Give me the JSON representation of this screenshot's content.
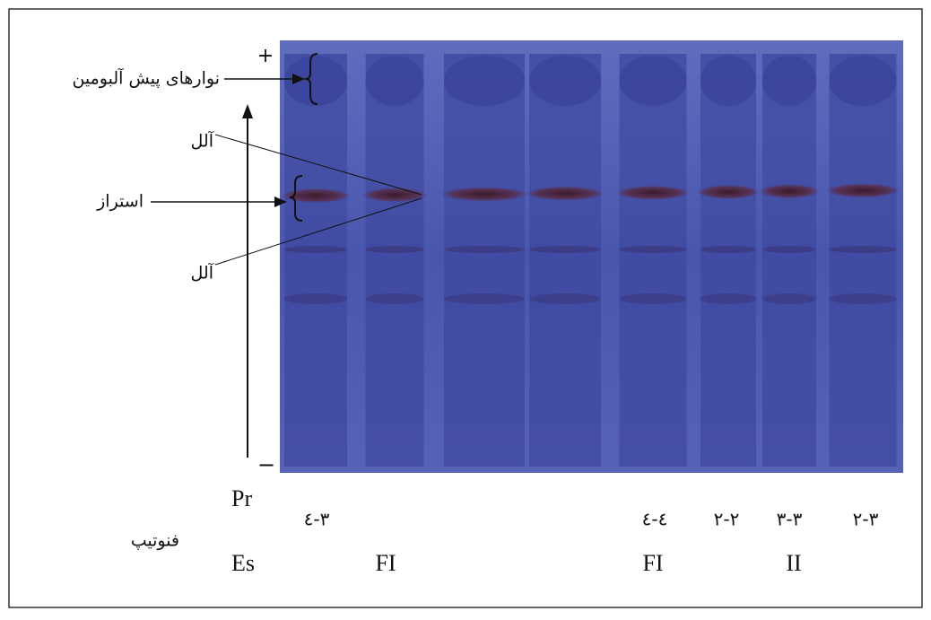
{
  "figure": {
    "plus": "+",
    "minus": "−",
    "prealbumin": "نوارهای پیش آلبومین",
    "allele_top": "آلل",
    "esterase": "استراز",
    "allele_bottom": "آلل",
    "phenotype": "فنوتیپ",
    "pr": "Pr",
    "es": "Es",
    "pr_lanes": [
      "٣-٤",
      "٤-٤",
      "٢-٢",
      "٣-٣",
      "٣-٢"
    ],
    "es_lanes": [
      "FI",
      "FI",
      "II"
    ]
  }
}
